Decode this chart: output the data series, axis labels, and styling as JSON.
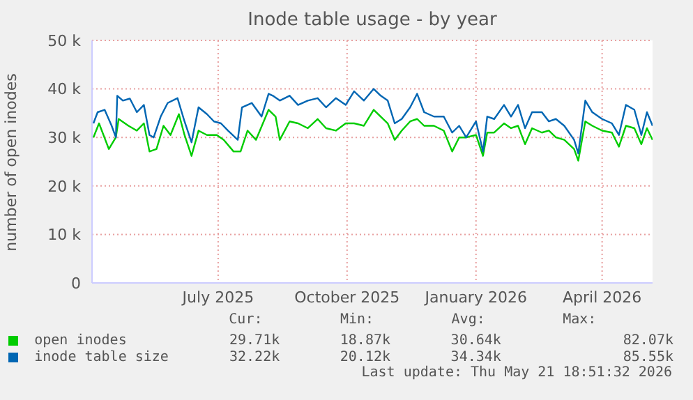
{
  "chart_data": {
    "type": "line",
    "title": "Inode table usage - by year",
    "ylabel": "number of open inodes",
    "xlim": [
      "2025-04-16",
      "2026-05-21"
    ],
    "xticks": [
      {
        "value": "2025-07-15",
        "label": "July 2025"
      },
      {
        "value": "2025-10-15",
        "label": "October 2025"
      },
      {
        "value": "2026-01-15",
        "label": "January 2026"
      },
      {
        "value": "2026-04-15",
        "label": "April 2026"
      }
    ],
    "ylim": [
      0,
      50000
    ],
    "yticks": [
      {
        "value": 0,
        "label": "0"
      },
      {
        "value": 10000,
        "label": "10 k"
      },
      {
        "value": 20000,
        "label": "20 k"
      },
      {
        "value": 30000,
        "label": "30 k"
      },
      {
        "value": 40000,
        "label": "40 k"
      },
      {
        "value": 50000,
        "label": "50 k"
      }
    ],
    "grid": true,
    "legend": "bottom",
    "marker": "none",
    "line_style": "solid",
    "series": [
      {
        "name": "open inodes",
        "color": "#00cc00",
        "x": [
          "2025-04-17",
          "2025-04-21",
          "2025-04-28",
          "2025-05-03",
          "2025-05-05",
          "2025-05-12",
          "2025-05-18",
          "2025-05-23",
          "2025-05-27",
          "2025-06-01",
          "2025-06-06",
          "2025-06-11",
          "2025-06-17",
          "2025-06-21",
          "2025-06-26",
          "2025-07-01",
          "2025-07-07",
          "2025-07-14",
          "2025-07-19",
          "2025-07-26",
          "2025-07-31",
          "2025-08-05",
          "2025-08-11",
          "2025-08-20",
          "2025-08-25",
          "2025-08-28",
          "2025-09-04",
          "2025-09-10",
          "2025-09-17",
          "2025-09-24",
          "2025-09-30",
          "2025-10-07",
          "2025-10-14",
          "2025-10-20",
          "2025-10-27",
          "2025-11-03",
          "2025-11-08",
          "2025-11-13",
          "2025-11-18",
          "2025-11-23",
          "2025-11-29",
          "2025-12-04",
          "2025-12-09",
          "2025-12-16",
          "2025-12-23",
          "2025-12-29",
          "2026-01-03",
          "2026-01-08",
          "2026-01-15",
          "2026-01-20",
          "2026-01-23",
          "2026-01-28",
          "2026-02-04",
          "2026-02-09",
          "2026-02-14",
          "2026-02-19",
          "2026-02-24",
          "2026-03-03",
          "2026-03-08",
          "2026-03-13",
          "2026-03-19",
          "2026-03-26",
          "2026-03-29",
          "2026-04-03",
          "2026-04-08",
          "2026-04-15",
          "2026-04-22",
          "2026-04-27",
          "2026-05-02",
          "2026-05-08",
          "2026-05-13",
          "2026-05-17",
          "2026-05-21"
        ],
        "values": [
          30000,
          32900,
          27600,
          30000,
          33800,
          32400,
          31400,
          32900,
          27100,
          27600,
          32400,
          30500,
          34800,
          30500,
          26200,
          31400,
          30500,
          30500,
          29500,
          27100,
          27100,
          31400,
          29500,
          35700,
          34300,
          29500,
          33300,
          32900,
          31900,
          33800,
          31900,
          31400,
          32900,
          32900,
          32400,
          35700,
          34300,
          32900,
          29500,
          31400,
          33300,
          33800,
          32400,
          32400,
          31400,
          27100,
          30000,
          30000,
          30500,
          26200,
          31000,
          31000,
          32900,
          31900,
          32400,
          28600,
          31900,
          31000,
          31400,
          30000,
          29500,
          27600,
          25200,
          33300,
          32400,
          31400,
          31000,
          28100,
          32400,
          31900,
          28600,
          31900,
          29500
        ]
      },
      {
        "name": "inode table size",
        "color": "#0066b3",
        "x": [
          "2025-04-17",
          "2025-04-20",
          "2025-04-25",
          "2025-04-30",
          "2025-05-03",
          "2025-05-04",
          "2025-05-08",
          "2025-05-13",
          "2025-05-18",
          "2025-05-23",
          "2025-05-27",
          "2025-05-30",
          "2025-06-04",
          "2025-06-09",
          "2025-06-16",
          "2025-06-21",
          "2025-06-26",
          "2025-07-01",
          "2025-07-07",
          "2025-07-12",
          "2025-07-17",
          "2025-07-22",
          "2025-07-29",
          "2025-08-01",
          "2025-08-08",
          "2025-08-15",
          "2025-08-20",
          "2025-08-23",
          "2025-08-28",
          "2025-09-04",
          "2025-09-10",
          "2025-09-17",
          "2025-09-24",
          "2025-09-30",
          "2025-10-07",
          "2025-10-14",
          "2025-10-20",
          "2025-10-27",
          "2025-11-03",
          "2025-11-08",
          "2025-11-13",
          "2025-11-18",
          "2025-11-23",
          "2025-11-29",
          "2025-12-04",
          "2025-12-09",
          "2025-12-16",
          "2025-12-23",
          "2025-12-29",
          "2026-01-03",
          "2026-01-08",
          "2026-01-15",
          "2026-01-20",
          "2026-01-23",
          "2026-01-28",
          "2026-02-04",
          "2026-02-09",
          "2026-02-14",
          "2026-02-19",
          "2026-02-24",
          "2026-03-03",
          "2026-03-08",
          "2026-03-13",
          "2026-03-19",
          "2026-03-26",
          "2026-03-29",
          "2026-04-03",
          "2026-04-08",
          "2026-04-15",
          "2026-04-22",
          "2026-04-27",
          "2026-05-02",
          "2026-05-08",
          "2026-05-13",
          "2026-05-17",
          "2026-05-21"
        ],
        "values": [
          32900,
          35200,
          35700,
          32400,
          30000,
          38600,
          37600,
          38000,
          35200,
          36700,
          30500,
          30000,
          34300,
          37100,
          38100,
          33300,
          29000,
          36200,
          34800,
          33300,
          32900,
          31400,
          29500,
          36200,
          37100,
          34300,
          39000,
          38600,
          37600,
          38600,
          36700,
          37600,
          38100,
          36200,
          38100,
          36700,
          39500,
          37600,
          40000,
          38600,
          37600,
          32900,
          33800,
          36200,
          39000,
          35200,
          34300,
          34300,
          31000,
          32400,
          30000,
          33300,
          27100,
          34300,
          33800,
          36700,
          34300,
          36700,
          31900,
          35200,
          35200,
          33300,
          33800,
          32400,
          29500,
          26700,
          37600,
          35200,
          33800,
          32900,
          30500,
          36700,
          35700,
          30500,
          35200,
          32400
        ]
      }
    ],
    "annotations": [
      "Cur:",
      "Min:",
      "Avg:",
      "Max:",
      "29.71k",
      "18.87k",
      "30.64k",
      "82.07k",
      "32.22k",
      "20.12k",
      "34.34k",
      "85.55k",
      "Last update: Thu May 21 18:51:32 2026"
    ]
  }
}
